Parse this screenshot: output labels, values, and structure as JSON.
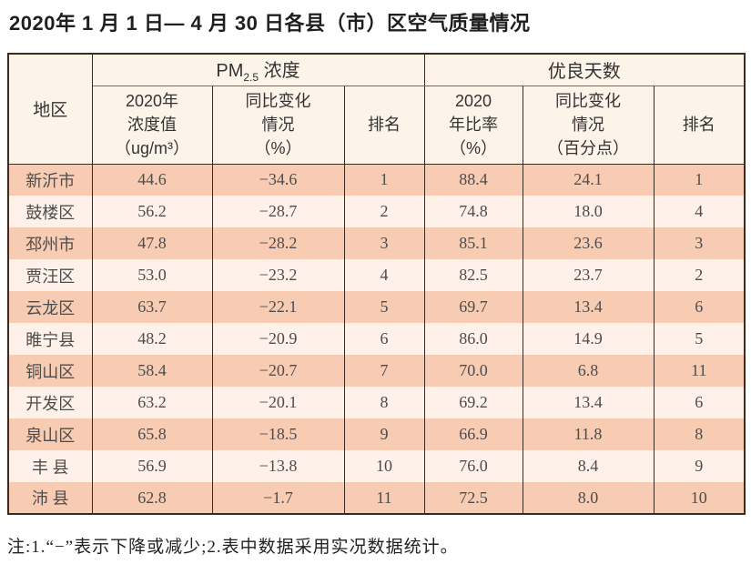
{
  "title": "2020年 1 月 1 日— 4 月 30 日各县（市）区空气质量情况",
  "note": "注:1.“−”表示下降或减少;2.表中数据采用实况数据统计。",
  "colors": {
    "band_row": "#f8cbb3",
    "light_row": "#fdf1e9",
    "header_bg": "#fcf3e9",
    "border": "#3a2b22"
  },
  "table": {
    "header": {
      "region": "地区",
      "pm25_group_prefix": "PM",
      "pm25_group_sub": "2.5",
      "pm25_group_suffix": " 浓度",
      "good_days_group": "优良天数",
      "pm25_value": "2020年\n浓度值\n（ug/m³）",
      "pm25_change": "同比变化\n情况\n（%）",
      "pm25_rank": "排名",
      "rate_value": "2020\n年比率\n（%）",
      "rate_change": "同比变化\n情况\n（百分点）",
      "rate_rank": "排名"
    },
    "columns": [
      "region",
      "pm25",
      "pm25_change",
      "pm25_rank",
      "rate",
      "rate_change",
      "rate_rank"
    ],
    "rows": [
      {
        "region": "新沂市",
        "pm25": "44.6",
        "pm25_change": "−34.6",
        "pm25_rank": "1",
        "rate": "88.4",
        "rate_change": "24.1",
        "rate_rank": "1"
      },
      {
        "region": "鼓楼区",
        "pm25": "56.2",
        "pm25_change": "−28.7",
        "pm25_rank": "2",
        "rate": "74.8",
        "rate_change": "18.0",
        "rate_rank": "4"
      },
      {
        "region": "邳州市",
        "pm25": "47.8",
        "pm25_change": "−28.2",
        "pm25_rank": "3",
        "rate": "85.1",
        "rate_change": "23.6",
        "rate_rank": "3"
      },
      {
        "region": "贾汪区",
        "pm25": "53.0",
        "pm25_change": "−23.2",
        "pm25_rank": "4",
        "rate": "82.5",
        "rate_change": "23.7",
        "rate_rank": "2"
      },
      {
        "region": "云龙区",
        "pm25": "63.7",
        "pm25_change": "−22.1",
        "pm25_rank": "5",
        "rate": "69.7",
        "rate_change": "13.4",
        "rate_rank": "6"
      },
      {
        "region": "睢宁县",
        "pm25": "48.2",
        "pm25_change": "−20.9",
        "pm25_rank": "6",
        "rate": "86.0",
        "rate_change": "14.9",
        "rate_rank": "5"
      },
      {
        "region": "铜山区",
        "pm25": "58.4",
        "pm25_change": "−20.7",
        "pm25_rank": "7",
        "rate": "70.0",
        "rate_change": "6.8",
        "rate_rank": "11"
      },
      {
        "region": "开发区",
        "pm25": "63.2",
        "pm25_change": "−20.1",
        "pm25_rank": "8",
        "rate": "69.2",
        "rate_change": "13.4",
        "rate_rank": "6"
      },
      {
        "region": "泉山区",
        "pm25": "65.8",
        "pm25_change": "−18.5",
        "pm25_rank": "9",
        "rate": "66.9",
        "rate_change": "11.8",
        "rate_rank": "8"
      },
      {
        "region": "丰 县",
        "pm25": "56.9",
        "pm25_change": "−13.8",
        "pm25_rank": "10",
        "rate": "76.0",
        "rate_change": "8.4",
        "rate_rank": "9"
      },
      {
        "region": "沛 县",
        "pm25": "62.8",
        "pm25_change": "−1.7",
        "pm25_rank": "11",
        "rate": "72.5",
        "rate_change": "8.0",
        "rate_rank": "10"
      }
    ]
  }
}
